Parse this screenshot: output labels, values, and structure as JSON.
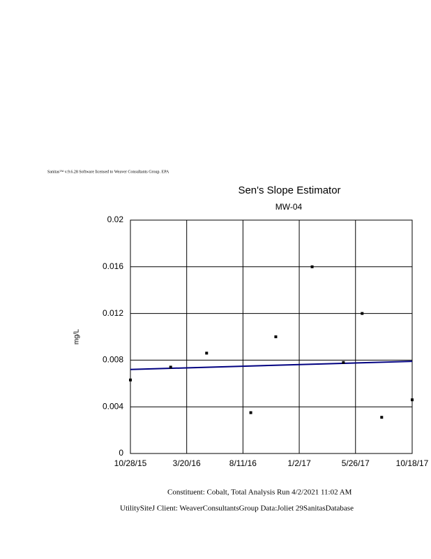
{
  "header": "Sanitas™ v.9.6.28 Software licensed to Weaver Consultants Group. EPA",
  "chart_data": {
    "type": "scatter",
    "title": "Sen's Slope Estimator",
    "subtitle": "MW-04",
    "y_label": "mg/L",
    "x": [
      "10/28/15",
      "2/8/16",
      "5/10/16",
      "8/31/16",
      "11/3/16",
      "2/4/17",
      "4/25/17",
      "6/12/17",
      "8/1/17",
      "10/18/17"
    ],
    "values": [
      0.0063,
      0.0074,
      0.0086,
      0.0035,
      0.01,
      0.016,
      0.0078,
      0.012,
      0.0031,
      0.0046
    ],
    "color": "#000000",
    "trend_line": {
      "x": [
        "10/28/15",
        "10/18/17"
      ],
      "values": [
        0.0072,
        0.0079
      ],
      "color": "#000080"
    },
    "xlim": [
      "10/28/15",
      "10/18/17"
    ],
    "xticks": [
      "10/28/15",
      "3/20/16",
      "8/11/16",
      "1/2/17",
      "5/26/17",
      "10/18/17"
    ],
    "ylim": [
      0,
      0.02
    ],
    "yticks": [
      0,
      0.004,
      0.008,
      0.012,
      0.016,
      0.02
    ],
    "grid": true
  },
  "footer": {
    "line1": "Constituent: Cobalt, Total Analysis Run 4/2/2021 11:02 AM",
    "line2": "UtilitySiteJ Client: WeaverConsultantsGroup Data:Joliet 29SanitasDatabase"
  }
}
